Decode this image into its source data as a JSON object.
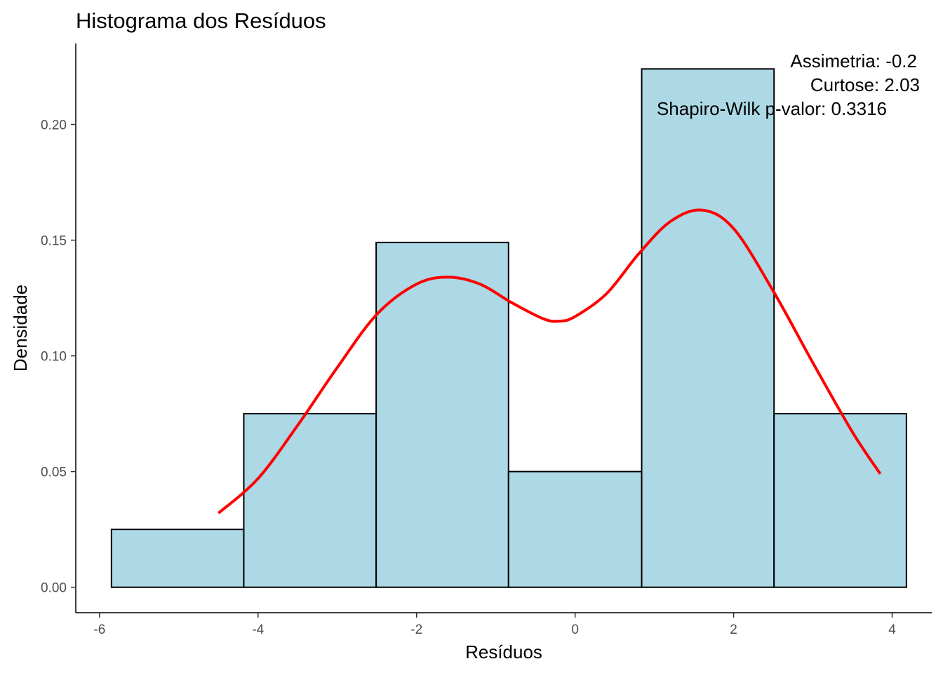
{
  "chart_data": {
    "type": "bar",
    "title": "Histograma dos Resíduos",
    "xlabel": "Resíduos",
    "ylabel": "Densidade",
    "xlim": [
      -6.3,
      4.5
    ],
    "ylim": [
      -0.011,
      0.235
    ],
    "xticks": [
      -6,
      -4,
      -2,
      0,
      2,
      4
    ],
    "yticks": [
      0.0,
      0.05,
      0.1,
      0.15,
      0.2
    ],
    "xtick_labels": [
      "-6",
      "-4",
      "-2",
      "0",
      "2",
      "4"
    ],
    "ytick_labels": [
      "0.00",
      "0.05",
      "0.10",
      "0.15",
      "0.20"
    ],
    "bins": [
      {
        "x0": -5.85,
        "x1": -4.18,
        "density": 0.025
      },
      {
        "x0": -4.18,
        "x1": -2.51,
        "density": 0.075
      },
      {
        "x0": -2.51,
        "x1": -0.84,
        "density": 0.149
      },
      {
        "x0": -0.84,
        "x1": 0.84,
        "density": 0.05
      },
      {
        "x0": 0.84,
        "x1": 2.51,
        "density": 0.224
      },
      {
        "x0": 2.51,
        "x1": 4.18,
        "density": 0.075
      }
    ],
    "density_curve": {
      "color": "#ff0000",
      "x": [
        -4.5,
        -4.0,
        -3.5,
        -3.0,
        -2.5,
        -2.0,
        -1.6,
        -1.2,
        -0.8,
        -0.4,
        -0.2,
        0.0,
        0.4,
        0.8,
        1.2,
        1.6,
        2.0,
        2.5,
        3.0,
        3.5,
        3.85
      ],
      "y": [
        0.032,
        0.047,
        0.07,
        0.095,
        0.118,
        0.131,
        0.134,
        0.131,
        0.123,
        0.116,
        0.115,
        0.117,
        0.127,
        0.144,
        0.158,
        0.163,
        0.155,
        0.128,
        0.097,
        0.067,
        0.049
      ]
    },
    "annotations": [
      "Assimetria: -0.2",
      "Curtose: 2.03",
      "Shapiro-Wilk p-valor: 0.3316"
    ],
    "grid": false,
    "bar_fill": "#add8e6",
    "bar_stroke": "#000000"
  }
}
